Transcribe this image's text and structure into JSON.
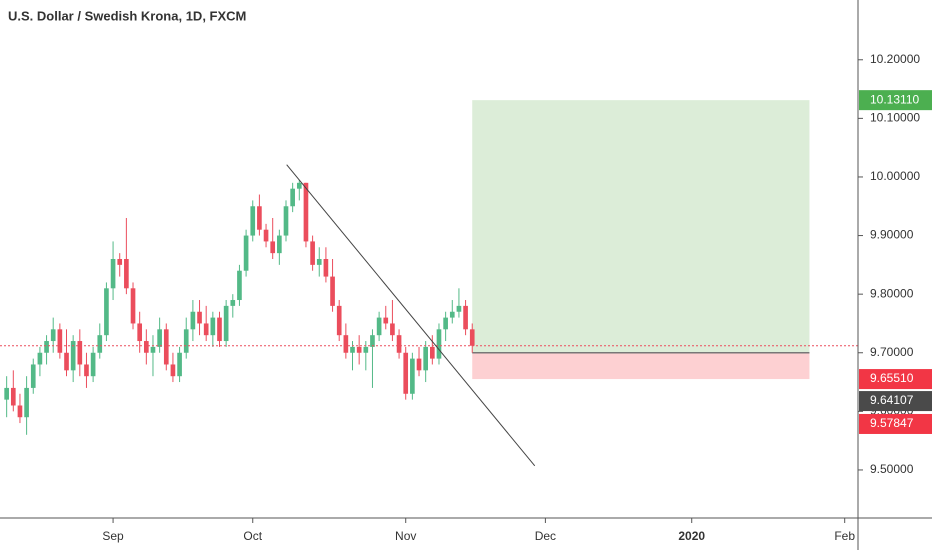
{
  "chart_data": {
    "type": "candlestick",
    "title": "U.S. Dollar / Swedish Krona, 1D, FXCM",
    "up_color": "#53b987",
    "down_color": "#eb4d5c",
    "open": [
      9.62,
      9.64,
      9.61,
      9.59,
      9.64,
      9.68,
      9.7,
      9.72,
      9.74,
      9.7,
      9.67,
      9.72,
      9.68,
      9.66,
      9.7,
      9.73,
      9.81,
      9.86,
      9.86,
      9.81,
      9.75,
      9.72,
      9.7,
      9.71,
      9.74,
      9.68,
      9.66,
      9.7,
      9.74,
      9.77,
      9.75,
      9.73,
      9.76,
      9.72,
      9.78,
      9.79,
      9.84,
      9.9,
      9.95,
      9.91,
      9.89,
      9.87,
      9.9,
      9.95,
      9.98,
      9.99,
      9.89,
      9.85,
      9.86,
      9.83,
      9.78,
      9.73,
      9.7,
      9.71,
      9.7,
      9.71,
      9.73,
      9.76,
      9.75,
      9.73,
      9.7,
      9.63,
      9.69,
      9.67,
      9.71,
      9.69,
      9.74,
      9.76,
      9.77,
      9.78,
      9.74
    ],
    "high": [
      9.66,
      9.67,
      9.63,
      9.66,
      9.69,
      9.71,
      9.73,
      9.76,
      9.75,
      9.74,
      9.73,
      9.74,
      9.7,
      9.71,
      9.75,
      9.82,
      9.89,
      9.87,
      9.93,
      9.82,
      9.77,
      9.74,
      9.73,
      9.76,
      9.75,
      9.7,
      9.71,
      9.76,
      9.79,
      9.79,
      9.78,
      9.77,
      9.77,
      9.79,
      9.8,
      9.85,
      9.91,
      9.96,
      9.97,
      9.92,
      9.93,
      9.91,
      9.96,
      9.99,
      9.995,
      9.99,
      9.9,
      9.88,
      9.88,
      9.86,
      9.79,
      9.75,
      9.72,
      9.73,
      9.72,
      9.74,
      9.77,
      9.78,
      9.79,
      9.74,
      9.71,
      9.7,
      9.71,
      9.72,
      9.73,
      9.75,
      9.77,
      9.79,
      9.81,
      9.79,
      9.75
    ],
    "low": [
      9.59,
      9.6,
      9.58,
      9.56,
      9.63,
      9.66,
      9.68,
      9.7,
      9.69,
      9.66,
      9.65,
      9.66,
      9.64,
      9.65,
      9.69,
      9.72,
      9.79,
      9.83,
      9.8,
      9.74,
      9.7,
      9.68,
      9.66,
      9.7,
      9.67,
      9.65,
      9.65,
      9.69,
      9.72,
      9.73,
      9.72,
      9.71,
      9.71,
      9.71,
      9.76,
      9.78,
      9.83,
      9.89,
      9.9,
      9.88,
      9.86,
      9.85,
      9.89,
      9.94,
      9.96,
      9.88,
      9.84,
      9.83,
      9.82,
      9.77,
      9.72,
      9.69,
      9.67,
      9.68,
      9.67,
      9.64,
      9.72,
      9.74,
      9.72,
      9.69,
      9.62,
      9.62,
      9.66,
      9.65,
      9.68,
      9.68,
      9.72,
      9.75,
      9.76,
      9.73,
      9.7
    ],
    "close": [
      9.64,
      9.61,
      9.59,
      9.64,
      9.68,
      9.7,
      9.72,
      9.74,
      9.7,
      9.67,
      9.72,
      9.68,
      9.66,
      9.7,
      9.73,
      9.81,
      9.86,
      9.85,
      9.81,
      9.75,
      9.72,
      9.7,
      9.71,
      9.74,
      9.68,
      9.66,
      9.7,
      9.74,
      9.77,
      9.75,
      9.73,
      9.76,
      9.72,
      9.78,
      9.79,
      9.84,
      9.9,
      9.95,
      9.91,
      9.89,
      9.87,
      9.9,
      9.95,
      9.98,
      9.99,
      9.89,
      9.85,
      9.86,
      9.83,
      9.78,
      9.73,
      9.7,
      9.71,
      9.7,
      9.71,
      9.73,
      9.76,
      9.75,
      9.73,
      9.7,
      9.63,
      9.69,
      9.67,
      9.71,
      9.69,
      9.74,
      9.76,
      9.77,
      9.78,
      9.74,
      9.712
    ],
    "xlim": [
      -1,
      128
    ],
    "xticks": [
      {
        "value": 16,
        "label": "Sep"
      },
      {
        "value": 37,
        "label": "Oct"
      },
      {
        "value": 60,
        "label": "Nov"
      },
      {
        "value": 81,
        "label": "Dec"
      },
      {
        "value": 103,
        "label": "2020"
      },
      {
        "value": 126,
        "label": "Feb"
      }
    ],
    "ylim": [
      9.418,
      10.302
    ],
    "yticks": [
      {
        "value": 9.5,
        "label": "9.50000"
      },
      {
        "value": 9.6,
        "label": "9.60000"
      },
      {
        "value": 9.7,
        "label": "9.70000"
      },
      {
        "value": 9.8,
        "label": "9.80000"
      },
      {
        "value": 9.9,
        "label": "9.90000"
      },
      {
        "value": 10.0,
        "label": "10.00000"
      },
      {
        "value": 10.1,
        "label": "10.10000"
      },
      {
        "value": 10.2,
        "label": "10.20000"
      }
    ],
    "trendline": {
      "x": [
        42.1,
        79.4
      ],
      "y": [
        10.021,
        9.507
      ],
      "color": "#444444"
    },
    "position": {
      "x": [
        70,
        120.7
      ],
      "entry": 9.7,
      "target": 10.1311,
      "stop": 9.6551,
      "profit_color": "#dcedd8",
      "loss_color": "#fdd0d2"
    },
    "price_labels": [
      {
        "value": 10.1311,
        "label": "10.13110",
        "color": "#4caf50"
      },
      {
        "value": 9.6551,
        "label": "9.65510",
        "color": "#f23645"
      },
      {
        "value": 9.64107,
        "label": "9.64107",
        "color": "#4a4a4a"
      },
      {
        "value": 9.57847,
        "label": "9.57847",
        "color": "#f23645"
      }
    ]
  }
}
